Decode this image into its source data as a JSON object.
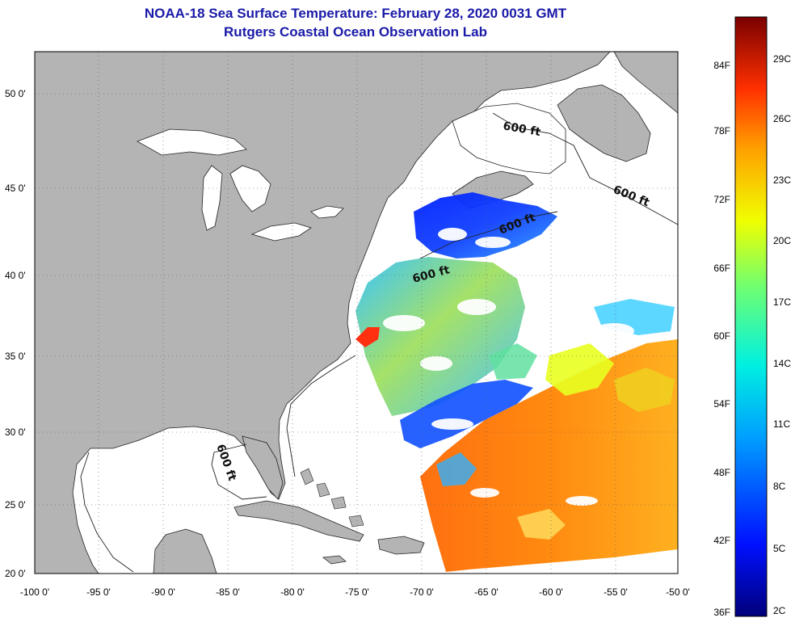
{
  "header": {
    "title": "NOAA-18 Sea Surface Temperature:  February 28, 2020 0031 GMT",
    "subtitle": "Rutgers Coastal Ocean Observation Lab"
  },
  "map": {
    "lat_labels": [
      "50 0'",
      "45 0'",
      "40 0'",
      "35 0'",
      "30 0'",
      "25 0'",
      "20 0'"
    ],
    "lon_labels": [
      "-100 0'",
      "-95 0'",
      "-90 0'",
      "-85 0'",
      "-80 0'",
      "-75 0'",
      "-70 0'",
      "-65 0'",
      "-60 0'",
      "-55 0'",
      "-50 0'"
    ],
    "contour_labels": [
      "600 ft",
      "600 ft",
      "600 ft",
      "600 ft",
      "600 ft"
    ],
    "colors": {
      "land": "#b4b4b4",
      "water_nodata": "#ffffff",
      "cloud": "#ffffff"
    }
  },
  "colorbar": {
    "fahrenheit": [
      "84F",
      "78F",
      "72F",
      "66F",
      "60F",
      "54F",
      "48F",
      "42F",
      "36F"
    ],
    "celsius": [
      "29C",
      "26C",
      "23C",
      "20C",
      "17C",
      "14C",
      "11C",
      "8C",
      "5C",
      "2C"
    ]
  }
}
